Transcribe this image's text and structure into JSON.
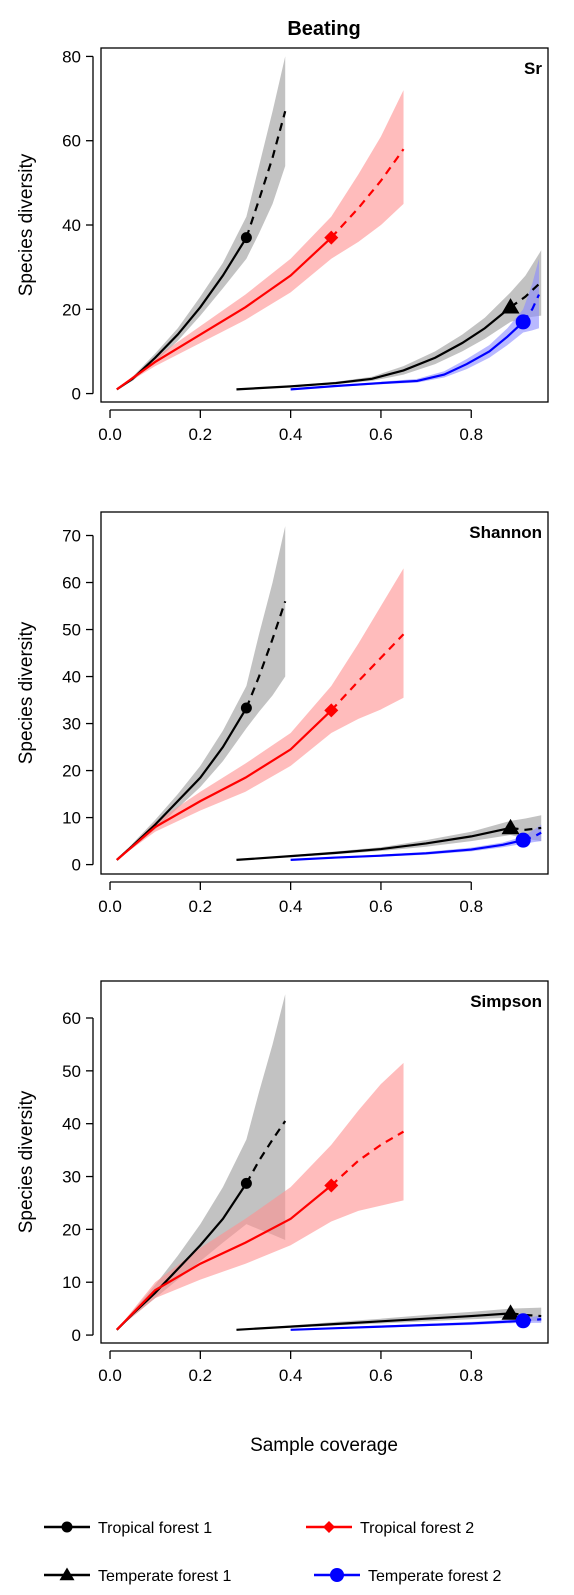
{
  "title": "Beating",
  "xlabel": "Sample coverage",
  "colors": {
    "tropical_forest_1": "#000000",
    "tropical_forest_2": "#ff0000",
    "temperate_forest_1": "#000000",
    "temperate_forest_2": "#0000ff",
    "band_black": "#999999",
    "band_red": "#ff9090",
    "band_blue": "#8a8aff"
  },
  "legend": {
    "items": [
      {
        "label": "Tropical forest 1",
        "marker": "circle",
        "color": "#000000"
      },
      {
        "label": "Tropical forest 2",
        "marker": "diamond",
        "color": "#ff0000"
      },
      {
        "label": "Temperate forest 1",
        "marker": "triangle",
        "color": "#000000"
      },
      {
        "label": "Temperate forest 2",
        "marker": "circle",
        "color": "#0000ff"
      }
    ]
  },
  "chart_data": [
    {
      "type": "line",
      "panel": "Sr",
      "ylabel": "Species diversity",
      "xlim": [
        -0.02,
        0.97
      ],
      "ylim": [
        -2,
        82
      ],
      "xticks": [
        "0.0",
        "0.2",
        "0.4",
        "0.6",
        "0.8"
      ],
      "yticks": [
        "0",
        "20",
        "40",
        "60",
        "80"
      ],
      "series": [
        {
          "name": "Tropical forest 1",
          "key": "tf1",
          "color": "#000000",
          "band": "#999999",
          "marker": "circle",
          "x": [
            0.015,
            0.05,
            0.1,
            0.15,
            0.2,
            0.25,
            0.302,
            0.33,
            0.36,
            0.388
          ],
          "y": [
            1,
            3.5,
            8.5,
            14,
            20.5,
            28,
            37,
            46,
            56,
            67
          ],
          "lower": [
            1,
            3,
            7.5,
            12.5,
            18.5,
            25,
            32,
            38,
            45,
            54
          ],
          "upper": [
            1,
            4,
            9.5,
            15.5,
            23,
            31,
            42,
            54,
            67,
            80
          ],
          "marker_x": 0.302,
          "marker_y": 37,
          "observed_end": 6
        },
        {
          "name": "Tropical forest 2",
          "key": "tf2",
          "color": "#ff0000",
          "band": "#ff9090",
          "marker": "diamond",
          "x": [
            0.015,
            0.1,
            0.2,
            0.3,
            0.4,
            0.49,
            0.55,
            0.6,
            0.65
          ],
          "y": [
            1,
            7.5,
            14,
            20.5,
            28,
            37,
            44,
            50.5,
            58
          ],
          "lower": [
            1,
            6.5,
            12,
            17.5,
            24,
            32,
            36,
            40,
            45
          ],
          "upper": [
            1,
            8.5,
            16,
            23.5,
            32,
            42,
            52,
            61,
            72
          ],
          "marker_x": 0.49,
          "marker_y": 37,
          "observed_end": 5
        },
        {
          "name": "Temperate forest 1",
          "key": "te1",
          "color": "#000000",
          "band": "#999999",
          "marker": "triangle",
          "x": [
            0.28,
            0.4,
            0.5,
            0.58,
            0.65,
            0.72,
            0.78,
            0.83,
            0.887,
            0.92,
            0.955
          ],
          "y": [
            1,
            1.7,
            2.5,
            3.5,
            5.5,
            8.5,
            12,
            15.5,
            20.5,
            23,
            26.5
          ],
          "lower": [
            1,
            1.5,
            2.2,
            3,
            4.5,
            7,
            10,
            13,
            17,
            18,
            18.5
          ],
          "upper": [
            1,
            1.9,
            2.8,
            4,
            6.5,
            10,
            14,
            18,
            24,
            28,
            34
          ],
          "marker_x": 0.887,
          "marker_y": 20.5,
          "observed_end": 8
        },
        {
          "name": "Temperate forest 2",
          "key": "te2",
          "color": "#0000ff",
          "band": "#8a8aff",
          "marker": "circle",
          "x": [
            0.4,
            0.5,
            0.6,
            0.68,
            0.74,
            0.79,
            0.84,
            0.88,
            0.915,
            0.935,
            0.95
          ],
          "y": [
            1,
            1.8,
            2.5,
            3,
            4.5,
            7,
            10,
            13.5,
            17,
            20,
            23.5
          ],
          "lower": [
            1,
            1.6,
            2.2,
            2.6,
            3.8,
            5.8,
            8.5,
            11.5,
            14.5,
            15,
            15.5
          ],
          "upper": [
            1,
            2,
            2.8,
            3.5,
            5.3,
            8.2,
            11.5,
            15.5,
            20,
            26,
            32
          ],
          "marker_x": 0.915,
          "marker_y": 17,
          "observed_end": 8
        }
      ]
    },
    {
      "type": "line",
      "panel": "Shannon",
      "ylabel": "Species diversity",
      "xlim": [
        -0.02,
        0.97
      ],
      "ylim": [
        -2,
        75
      ],
      "xticks": [
        "0.0",
        "0.2",
        "0.4",
        "0.6",
        "0.8"
      ],
      "yticks": [
        "0",
        "10",
        "20",
        "30",
        "40",
        "50",
        "60",
        "70"
      ],
      "series": [
        {
          "name": "Tropical forest 1",
          "key": "tf1",
          "color": "#000000",
          "band": "#999999",
          "marker": "circle",
          "x": [
            0.015,
            0.05,
            0.1,
            0.15,
            0.2,
            0.25,
            0.302,
            0.33,
            0.36,
            0.388
          ],
          "y": [
            1,
            4,
            8.5,
            13.5,
            18.5,
            25,
            33.3,
            40,
            48,
            56
          ],
          "lower": [
            1,
            3.5,
            7.5,
            12,
            16.5,
            22,
            29,
            32.5,
            36,
            40
          ],
          "upper": [
            1,
            4.5,
            9.5,
            15,
            21,
            28.5,
            38,
            49,
            60,
            72
          ],
          "marker_x": 0.302,
          "marker_y": 33.3,
          "observed_end": 6
        },
        {
          "name": "Tropical forest 2",
          "key": "tf2",
          "color": "#ff0000",
          "band": "#ff9090",
          "marker": "diamond",
          "x": [
            0.015,
            0.1,
            0.2,
            0.3,
            0.4,
            0.49,
            0.55,
            0.6,
            0.65
          ],
          "y": [
            1,
            8,
            13.5,
            18.5,
            24.5,
            32.8,
            39,
            44,
            49
          ],
          "lower": [
            1,
            7,
            11.5,
            15.5,
            21,
            28,
            31,
            33,
            35.5
          ],
          "upper": [
            1,
            9,
            15.5,
            21.5,
            28,
            38,
            47,
            55,
            63
          ],
          "marker_x": 0.49,
          "marker_y": 32.8,
          "observed_end": 5
        },
        {
          "name": "Temperate forest 1",
          "key": "te1",
          "color": "#000000",
          "band": "#999999",
          "marker": "triangle",
          "x": [
            0.28,
            0.4,
            0.5,
            0.6,
            0.7,
            0.8,
            0.887,
            0.92,
            0.955
          ],
          "y": [
            1,
            1.8,
            2.5,
            3.3,
            4.5,
            6,
            7.8,
            7.4,
            7.8
          ],
          "lower": [
            1,
            1.6,
            2.2,
            2.9,
            3.8,
            5,
            6.3,
            5.5,
            5
          ],
          "upper": [
            1,
            2,
            2.8,
            3.7,
            5.2,
            7,
            9.3,
            9.8,
            10.5
          ],
          "marker_x": 0.887,
          "marker_y": 7.8,
          "observed_end": 6
        },
        {
          "name": "Temperate forest 2",
          "key": "te2",
          "color": "#0000ff",
          "band": "#8a8aff",
          "marker": "circle",
          "x": [
            0.4,
            0.5,
            0.6,
            0.7,
            0.8,
            0.87,
            0.915,
            0.94,
            0.955
          ],
          "y": [
            1,
            1.5,
            1.9,
            2.4,
            3.2,
            4.2,
            5.2,
            6,
            6.8
          ],
          "lower": [
            1,
            1.3,
            1.7,
            2.1,
            2.8,
            3.7,
            4.4,
            4.8,
            5
          ],
          "upper": [
            1,
            1.7,
            2.1,
            2.7,
            3.6,
            4.7,
            6,
            7.5,
            8.5
          ],
          "marker_x": 0.915,
          "marker_y": 5.2,
          "observed_end": 6
        }
      ]
    },
    {
      "type": "line",
      "panel": "Simpson",
      "ylabel": "Species diversity",
      "xlim": [
        -0.02,
        0.97
      ],
      "ylim": [
        -1.5,
        67
      ],
      "xticks": [
        "0.0",
        "0.2",
        "0.4",
        "0.6",
        "0.8"
      ],
      "yticks": [
        "0",
        "10",
        "20",
        "30",
        "40",
        "50",
        "60"
      ],
      "series": [
        {
          "name": "Tropical forest 1",
          "key": "tf1",
          "color": "#000000",
          "band": "#999999",
          "marker": "circle",
          "x": [
            0.015,
            0.05,
            0.1,
            0.15,
            0.2,
            0.25,
            0.302,
            0.33,
            0.36,
            0.388
          ],
          "y": [
            1,
            4,
            8,
            12.5,
            17,
            22,
            28.7,
            33,
            37,
            40.5
          ],
          "lower": [
            1,
            3.5,
            7,
            10.5,
            14,
            17.5,
            21,
            20,
            19,
            18
          ],
          "upper": [
            1,
            4.5,
            9.5,
            15,
            21,
            28,
            37,
            46,
            55,
            64.5
          ],
          "marker_x": 0.302,
          "marker_y": 28.7,
          "observed_end": 6
        },
        {
          "name": "Tropical forest 2",
          "key": "tf2",
          "color": "#ff0000",
          "band": "#ff9090",
          "marker": "diamond",
          "x": [
            0.015,
            0.1,
            0.2,
            0.3,
            0.4,
            0.49,
            0.55,
            0.6,
            0.65
          ],
          "y": [
            1,
            8.5,
            13.5,
            17.5,
            22,
            28.3,
            33,
            36,
            38.5
          ],
          "lower": [
            1,
            7,
            10.5,
            13.5,
            17,
            21.5,
            23.5,
            24.5,
            25.5
          ],
          "upper": [
            1,
            10,
            16.5,
            22,
            28,
            36,
            42.5,
            47.5,
            51.5
          ],
          "marker_x": 0.49,
          "marker_y": 28.3,
          "observed_end": 5
        },
        {
          "name": "Temperate forest 1",
          "key": "te1",
          "color": "#000000",
          "band": "#999999",
          "marker": "triangle",
          "x": [
            0.28,
            0.4,
            0.5,
            0.6,
            0.7,
            0.8,
            0.887,
            0.92,
            0.955
          ],
          "y": [
            1,
            1.6,
            2.1,
            2.6,
            3.1,
            3.6,
            4.1,
            3.8,
            3.6
          ],
          "lower": [
            1,
            1.4,
            1.8,
            2.2,
            2.6,
            3,
            3.3,
            2.8,
            2.6
          ],
          "upper": [
            1,
            1.8,
            2.5,
            3.1,
            3.8,
            4.4,
            5,
            5.1,
            5.2
          ],
          "marker_x": 0.887,
          "marker_y": 4.1,
          "observed_end": 6
        },
        {
          "name": "Temperate forest 2",
          "key": "te2",
          "color": "#0000ff",
          "band": "#8a8aff",
          "marker": "circle",
          "x": [
            0.4,
            0.5,
            0.6,
            0.7,
            0.8,
            0.87,
            0.915,
            0.94,
            0.955
          ],
          "y": [
            1,
            1.3,
            1.6,
            1.9,
            2.2,
            2.5,
            2.7,
            2.9,
            3
          ],
          "lower": [
            1,
            1.2,
            1.4,
            1.7,
            1.9,
            2.2,
            2.3,
            2.3,
            2.3
          ],
          "upper": [
            1,
            1.4,
            1.8,
            2.1,
            2.5,
            2.8,
            3.1,
            3.5,
            3.8
          ],
          "marker_x": 0.915,
          "marker_y": 2.7,
          "observed_end": 6
        }
      ]
    }
  ]
}
